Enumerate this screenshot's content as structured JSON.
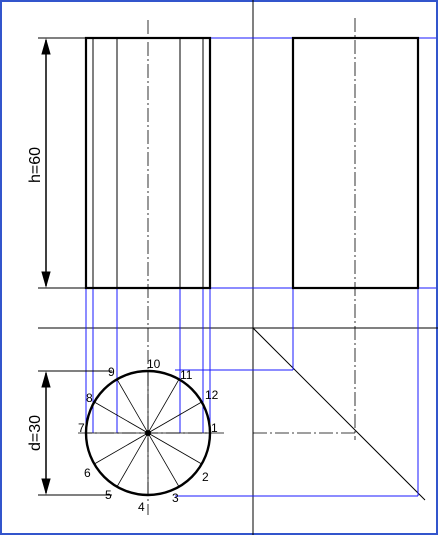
{
  "labels": {
    "height": "h=60",
    "diameter": "d=30",
    "points": [
      "1",
      "2",
      "3",
      "4",
      "5",
      "6",
      "7",
      "8",
      "9",
      "10",
      "11",
      "12"
    ]
  },
  "colors": {
    "frame": "#3355cc",
    "outline": "#000000",
    "projection": "#1a1aff",
    "background": "#ffffff"
  }
}
